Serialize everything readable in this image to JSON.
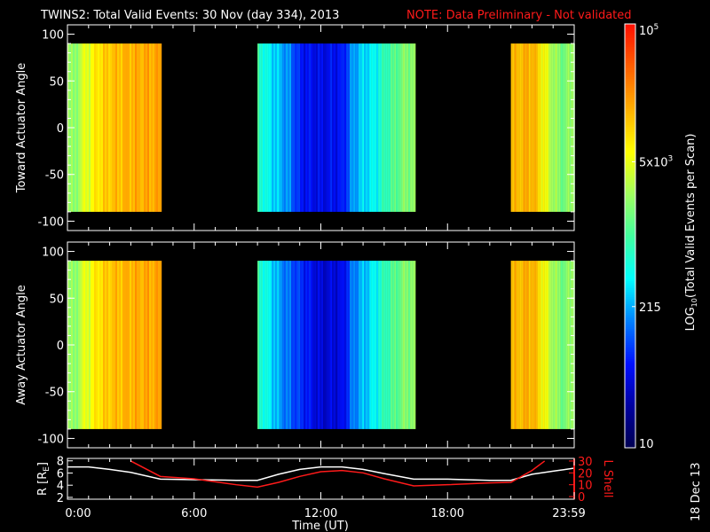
{
  "title": "TWINS2: Total Valid Events: 30 Nov (day 334), 2013",
  "note": "NOTE: Data Preliminary - Not validated",
  "footer_date": "18 Dec 13",
  "colors": {
    "background": "#000000",
    "axes": "#ffffff",
    "note": "#ff1a1a",
    "lshell": "#ff1a1a",
    "r_line": "#ffffff"
  },
  "chart_data": [
    {
      "type": "heatmap",
      "ylabel": "Toward Actuator Angle",
      "ylim": [
        -110,
        110
      ],
      "yticks": [
        "100",
        "50",
        "0",
        "-50",
        "-100"
      ],
      "ytick_values": [
        100,
        50,
        0,
        -50,
        -100
      ],
      "angle_range": [
        -90,
        90
      ],
      "xlim_hours": [
        0,
        24
      ],
      "segments": [
        {
          "profile": [
            [
              0,
              3.5
            ],
            [
              0.3,
              3.2
            ],
            [
              0.6,
              3.6
            ],
            [
              1,
              3.7
            ],
            [
              1.3,
              3.9
            ],
            [
              1.6,
              4.0
            ],
            [
              2,
              4.1
            ],
            [
              3,
              4.2
            ],
            [
              4.4,
              4.25
            ]
          ]
        },
        {
          "profile": [
            [
              9,
              2.9
            ],
            [
              9.5,
              2.6
            ],
            [
              10,
              2.4
            ],
            [
              10.5,
              2.2
            ],
            [
              11,
              1.8
            ],
            [
              12,
              1.7
            ],
            [
              13,
              1.8
            ],
            [
              13.5,
              2.3
            ],
            [
              14,
              2.5
            ],
            [
              14.5,
              2.6
            ],
            [
              15,
              2.9
            ],
            [
              15.5,
              3.1
            ],
            [
              16,
              3.3
            ],
            [
              16.4,
              3.3
            ]
          ]
        },
        {
          "profile": [
            [
              21,
              4.1
            ],
            [
              22,
              4.2
            ],
            [
              22.5,
              3.8
            ],
            [
              23,
              3.4
            ],
            [
              23.5,
              3.2
            ],
            [
              24,
              3.5
            ]
          ]
        }
      ]
    },
    {
      "type": "heatmap",
      "ylabel": "Away Actuator Angle",
      "ylim": [
        -110,
        110
      ],
      "yticks": [
        "100",
        "50",
        "0",
        "-50",
        "-100"
      ],
      "ytick_values": [
        100,
        50,
        0,
        -50,
        -100
      ],
      "angle_range": [
        -90,
        90
      ],
      "xlim_hours": [
        0,
        24
      ],
      "segments": [
        {
          "profile": [
            [
              0,
              3.5
            ],
            [
              0.3,
              3.2
            ],
            [
              0.6,
              3.6
            ],
            [
              1,
              3.7
            ],
            [
              1.3,
              3.9
            ],
            [
              1.6,
              4.0
            ],
            [
              2,
              4.1
            ],
            [
              3,
              4.2
            ],
            [
              4.4,
              4.25
            ]
          ]
        },
        {
          "profile": [
            [
              9,
              2.9
            ],
            [
              9.5,
              2.6
            ],
            [
              10,
              2.3
            ],
            [
              10.5,
              2.1
            ],
            [
              11,
              1.9
            ],
            [
              12,
              1.6
            ],
            [
              13,
              1.7
            ],
            [
              13.5,
              2.2
            ],
            [
              14,
              2.4
            ],
            [
              14.5,
              2.6
            ],
            [
              15,
              2.9
            ],
            [
              15.5,
              3.1
            ],
            [
              16,
              3.3
            ],
            [
              16.4,
              3.3
            ]
          ]
        },
        {
          "profile": [
            [
              21,
              4.1
            ],
            [
              22,
              4.2
            ],
            [
              22.5,
              3.8
            ],
            [
              23,
              3.4
            ],
            [
              23.5,
              3.2
            ],
            [
              24,
              3.5
            ]
          ]
        }
      ]
    },
    {
      "type": "line",
      "xlabel": "Time (UT)",
      "xticks": [
        "0:00",
        "6:00",
        "12:00",
        "18:00",
        "23:59"
      ],
      "xtick_values": [
        0,
        6,
        12,
        18,
        24
      ],
      "ylabel_left_main": "R [R",
      "ylabel_left_sub": "E",
      "ylabel_left_end": "]",
      "ylim_left": [
        1.7,
        8.4
      ],
      "yticks_left": [
        "8",
        "6",
        "4",
        "2"
      ],
      "ytick_left_values": [
        8,
        6,
        4,
        2
      ],
      "ylabel_right": "L Shell",
      "ylim_right": [
        -2.2,
        32.2
      ],
      "yticks_right": [
        "30",
        "20",
        "10",
        "0"
      ],
      "ytick_right_values": [
        30,
        20,
        10,
        0
      ],
      "series": [
        {
          "axis": "left",
          "points": [
            [
              0,
              7.0
            ],
            [
              1,
              7.0
            ],
            [
              2,
              6.6
            ],
            [
              3,
              6.1
            ],
            [
              4.4,
              5.0
            ],
            [
              6,
              4.9
            ],
            [
              8,
              4.8
            ],
            [
              9,
              4.8
            ],
            [
              10,
              5.8
            ],
            [
              11,
              6.6
            ],
            [
              12,
              7.0
            ],
            [
              13,
              7.0
            ],
            [
              14,
              6.6
            ],
            [
              15,
              5.9
            ],
            [
              16.4,
              5.0
            ],
            [
              18,
              5.0
            ],
            [
              20,
              4.8
            ],
            [
              21,
              4.8
            ],
            [
              22,
              5.8
            ],
            [
              23,
              6.3
            ],
            [
              24,
              6.8
            ]
          ]
        },
        {
          "axis": "right",
          "points": [
            [
              3,
              30
            ],
            [
              4.4,
              17
            ],
            [
              6,
              15
            ],
            [
              8,
              10
            ],
            [
              9,
              8
            ],
            [
              10,
              12
            ],
            [
              11,
              17
            ],
            [
              12,
              21
            ],
            [
              13,
              22
            ],
            [
              14,
              20
            ],
            [
              15,
              15
            ],
            [
              16.4,
              9
            ],
            [
              18,
              10
            ],
            [
              20,
              11.5
            ],
            [
              21,
              12
            ],
            [
              22,
              22
            ],
            [
              22.6,
              30
            ]
          ]
        }
      ]
    },
    {
      "type": "colorbar",
      "label_main": "LOG",
      "label_sub": "10",
      "label_rest": "(Total Valid Events per Scan)",
      "range_log10": [
        1,
        5
      ],
      "ticks": [
        {
          "value": 100000,
          "main": "10",
          "sup": "5"
        },
        {
          "value": 5000,
          "main": "5x10",
          "sup": "3"
        },
        {
          "value": 215,
          "main": "215",
          "sup": ""
        },
        {
          "value": 10,
          "main": "10",
          "sup": ""
        }
      ]
    }
  ]
}
